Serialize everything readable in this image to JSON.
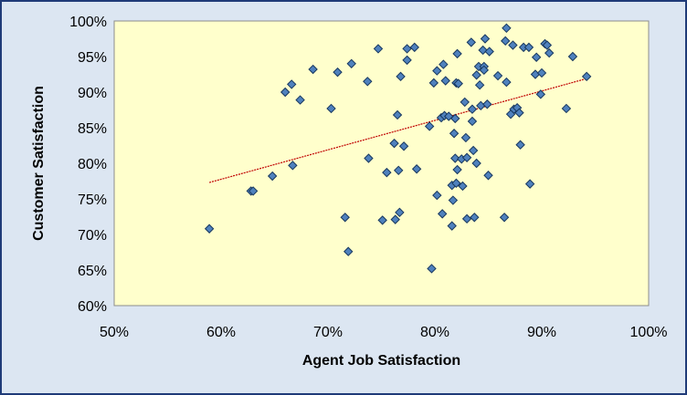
{
  "chart_data": {
    "type": "scatter",
    "title": "",
    "xlabel": "Agent Job Satisfaction",
    "ylabel": "Customer Satisfaction",
    "xlim": [
      0.5,
      1.0
    ],
    "ylim": [
      0.6,
      1.0
    ],
    "x_ticks": [
      "50%",
      "60%",
      "70%",
      "80%",
      "90%",
      "100%"
    ],
    "y_ticks": [
      "60%",
      "65%",
      "70%",
      "75%",
      "80%",
      "85%",
      "90%",
      "95%",
      "100%"
    ],
    "grid": false,
    "legend": "none",
    "colors": {
      "plot_background": "#ffffcc",
      "chart_background": "#dce6f2",
      "border": "#1f3b78",
      "marker_fill": "#4f81bd",
      "marker_stroke": "#17375e",
      "trendline": "#c00000"
    },
    "trendline": {
      "type": "linear",
      "x": [
        0.589,
        0.942
      ],
      "y": [
        0.773,
        0.919
      ]
    },
    "points": [
      {
        "x": 0.589,
        "y": 0.708
      },
      {
        "x": 0.628,
        "y": 0.761
      },
      {
        "x": 0.63,
        "y": 0.761
      },
      {
        "x": 0.648,
        "y": 0.782
      },
      {
        "x": 0.66,
        "y": 0.9
      },
      {
        "x": 0.666,
        "y": 0.911
      },
      {
        "x": 0.667,
        "y": 0.797
      },
      {
        "x": 0.674,
        "y": 0.889
      },
      {
        "x": 0.686,
        "y": 0.932
      },
      {
        "x": 0.703,
        "y": 0.877
      },
      {
        "x": 0.709,
        "y": 0.928
      },
      {
        "x": 0.716,
        "y": 0.724
      },
      {
        "x": 0.719,
        "y": 0.676
      },
      {
        "x": 0.722,
        "y": 0.94
      },
      {
        "x": 0.737,
        "y": 0.915
      },
      {
        "x": 0.738,
        "y": 0.807
      },
      {
        "x": 0.747,
        "y": 0.961
      },
      {
        "x": 0.751,
        "y": 0.72
      },
      {
        "x": 0.755,
        "y": 0.787
      },
      {
        "x": 0.762,
        "y": 0.828
      },
      {
        "x": 0.763,
        "y": 0.721
      },
      {
        "x": 0.765,
        "y": 0.868
      },
      {
        "x": 0.766,
        "y": 0.79
      },
      {
        "x": 0.767,
        "y": 0.731
      },
      {
        "x": 0.768,
        "y": 0.922
      },
      {
        "x": 0.771,
        "y": 0.824
      },
      {
        "x": 0.774,
        "y": 0.961
      },
      {
        "x": 0.774,
        "y": 0.945
      },
      {
        "x": 0.781,
        "y": 0.963
      },
      {
        "x": 0.783,
        "y": 0.792
      },
      {
        "x": 0.795,
        "y": 0.852
      },
      {
        "x": 0.797,
        "y": 0.652
      },
      {
        "x": 0.799,
        "y": 0.913
      },
      {
        "x": 0.802,
        "y": 0.93
      },
      {
        "x": 0.802,
        "y": 0.755
      },
      {
        "x": 0.806,
        "y": 0.864
      },
      {
        "x": 0.807,
        "y": 0.729
      },
      {
        "x": 0.808,
        "y": 0.939
      },
      {
        "x": 0.809,
        "y": 0.867
      },
      {
        "x": 0.81,
        "y": 0.916
      },
      {
        "x": 0.813,
        "y": 0.866
      },
      {
        "x": 0.816,
        "y": 0.712
      },
      {
        "x": 0.816,
        "y": 0.769
      },
      {
        "x": 0.817,
        "y": 0.748
      },
      {
        "x": 0.818,
        "y": 0.842
      },
      {
        "x": 0.819,
        "y": 0.863
      },
      {
        "x": 0.819,
        "y": 0.807
      },
      {
        "x": 0.82,
        "y": 0.772
      },
      {
        "x": 0.82,
        "y": 0.913
      },
      {
        "x": 0.821,
        "y": 0.954
      },
      {
        "x": 0.821,
        "y": 0.791
      },
      {
        "x": 0.822,
        "y": 0.912
      },
      {
        "x": 0.825,
        "y": 0.806
      },
      {
        "x": 0.826,
        "y": 0.768
      },
      {
        "x": 0.828,
        "y": 0.886
      },
      {
        "x": 0.829,
        "y": 0.836
      },
      {
        "x": 0.83,
        "y": 0.808
      },
      {
        "x": 0.83,
        "y": 0.722
      },
      {
        "x": 0.834,
        "y": 0.97
      },
      {
        "x": 0.835,
        "y": 0.859
      },
      {
        "x": 0.835,
        "y": 0.876
      },
      {
        "x": 0.836,
        "y": 0.818
      },
      {
        "x": 0.837,
        "y": 0.724
      },
      {
        "x": 0.839,
        "y": 0.8
      },
      {
        "x": 0.839,
        "y": 0.924
      },
      {
        "x": 0.841,
        "y": 0.936
      },
      {
        "x": 0.842,
        "y": 0.91
      },
      {
        "x": 0.843,
        "y": 0.881
      },
      {
        "x": 0.845,
        "y": 0.959
      },
      {
        "x": 0.846,
        "y": 0.936
      },
      {
        "x": 0.846,
        "y": 0.931
      },
      {
        "x": 0.847,
        "y": 0.975
      },
      {
        "x": 0.849,
        "y": 0.883
      },
      {
        "x": 0.85,
        "y": 0.783
      },
      {
        "x": 0.851,
        "y": 0.957
      },
      {
        "x": 0.859,
        "y": 0.923
      },
      {
        "x": 0.865,
        "y": 0.724
      },
      {
        "x": 0.866,
        "y": 0.972
      },
      {
        "x": 0.867,
        "y": 0.99
      },
      {
        "x": 0.867,
        "y": 0.914
      },
      {
        "x": 0.871,
        "y": 0.869
      },
      {
        "x": 0.873,
        "y": 0.966
      },
      {
        "x": 0.874,
        "y": 0.876
      },
      {
        "x": 0.877,
        "y": 0.878
      },
      {
        "x": 0.879,
        "y": 0.871
      },
      {
        "x": 0.88,
        "y": 0.826
      },
      {
        "x": 0.883,
        "y": 0.963
      },
      {
        "x": 0.888,
        "y": 0.963
      },
      {
        "x": 0.889,
        "y": 0.771
      },
      {
        "x": 0.894,
        "y": 0.925
      },
      {
        "x": 0.895,
        "y": 0.949
      },
      {
        "x": 0.899,
        "y": 0.897
      },
      {
        "x": 0.9,
        "y": 0.927
      },
      {
        "x": 0.903,
        "y": 0.968
      },
      {
        "x": 0.905,
        "y": 0.966
      },
      {
        "x": 0.907,
        "y": 0.955
      },
      {
        "x": 0.923,
        "y": 0.877
      },
      {
        "x": 0.929,
        "y": 0.95
      },
      {
        "x": 0.942,
        "y": 0.922
      }
    ]
  }
}
